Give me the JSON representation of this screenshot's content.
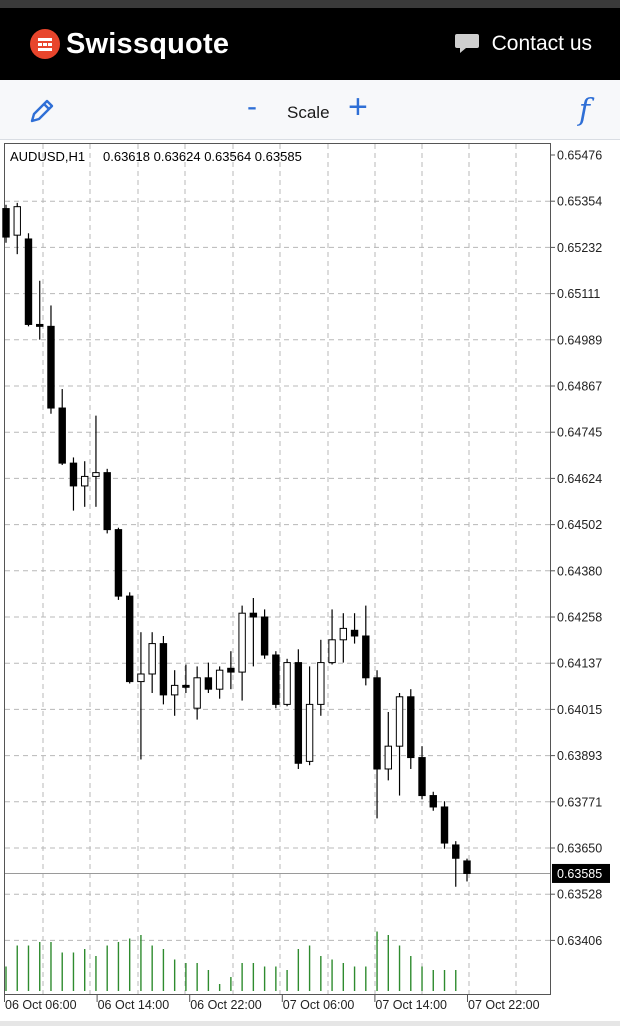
{
  "header": {
    "brand": "Swissquote",
    "contact_label": "Contact us"
  },
  "toolbar": {
    "scale_minus": "-",
    "scale_label": "Scale",
    "scale_plus": "+",
    "func_symbol": "f"
  },
  "chart_data": {
    "type": "candlestick",
    "symbol_label": "AUDUSD,H1",
    "ohlc_label": "0.63618 0.63624 0.63564 0.63585",
    "current_price_label": "0.63585",
    "current_price": 0.63585,
    "ylim": [
      0.63365,
      0.65476
    ],
    "y_ticks": [
      "0.65476",
      "0.65354",
      "0.65232",
      "0.65111",
      "0.64989",
      "0.64867",
      "0.64745",
      "0.64624",
      "0.64502",
      "0.64380",
      "0.64258",
      "0.64137",
      "0.64015",
      "0.63893",
      "0.63771",
      "0.63650",
      "0.63528",
      "0.63406"
    ],
    "x_ticks": [
      "06 Oct 06:00",
      "06 Oct 14:00",
      "06 Oct 22:00",
      "07 Oct 06:00",
      "07 Oct 14:00",
      "07 Oct 22:00"
    ],
    "colors": {
      "up": "#ffffff",
      "down": "#000000",
      "volume": "#2e8b2e",
      "grid": "#b8b8b8"
    },
    "candles": [
      [
        0.65335,
        0.65345,
        0.65245,
        0.6526
      ],
      [
        0.65265,
        0.6535,
        0.65215,
        0.6534
      ],
      [
        0.65255,
        0.6527,
        0.65025,
        0.6503
      ],
      [
        0.6503,
        0.65145,
        0.6499,
        0.65025
      ],
      [
        0.65025,
        0.6508,
        0.64795,
        0.6481
      ],
      [
        0.6481,
        0.6486,
        0.6466,
        0.64665
      ],
      [
        0.64665,
        0.6468,
        0.6454,
        0.64605
      ],
      [
        0.64605,
        0.6467,
        0.6455,
        0.6463
      ],
      [
        0.6463,
        0.6479,
        0.6455,
        0.6464
      ],
      [
        0.6464,
        0.6465,
        0.6448,
        0.6449
      ],
      [
        0.6449,
        0.64495,
        0.64305,
        0.64315
      ],
      [
        0.64315,
        0.64325,
        0.64085,
        0.6409
      ],
      [
        0.6409,
        0.6422,
        0.63885,
        0.6411
      ],
      [
        0.6411,
        0.6422,
        0.6406,
        0.6419
      ],
      [
        0.6419,
        0.6421,
        0.6403,
        0.64055
      ],
      [
        0.64055,
        0.6412,
        0.64,
        0.6408
      ],
      [
        0.6408,
        0.64135,
        0.6406,
        0.64075
      ],
      [
        0.6402,
        0.6413,
        0.6399,
        0.641
      ],
      [
        0.641,
        0.6414,
        0.6406,
        0.6407
      ],
      [
        0.6407,
        0.6413,
        0.64045,
        0.6412
      ],
      [
        0.64125,
        0.6417,
        0.6407,
        0.64115
      ],
      [
        0.64115,
        0.6429,
        0.6404,
        0.6427
      ],
      [
        0.6427,
        0.6431,
        0.6413,
        0.6426
      ],
      [
        0.6426,
        0.6428,
        0.6415,
        0.6416
      ],
      [
        0.6416,
        0.6417,
        0.6402,
        0.6403
      ],
      [
        0.6403,
        0.6415,
        0.64025,
        0.6414
      ],
      [
        0.6414,
        0.64175,
        0.6386,
        0.63875
      ],
      [
        0.6388,
        0.6413,
        0.6387,
        0.6403
      ],
      [
        0.6403,
        0.642,
        0.64,
        0.6414
      ],
      [
        0.6414,
        0.6428,
        0.64135,
        0.642
      ],
      [
        0.642,
        0.6427,
        0.6414,
        0.6423
      ],
      [
        0.64225,
        0.6427,
        0.6419,
        0.6421
      ],
      [
        0.6421,
        0.6429,
        0.6408,
        0.641
      ],
      [
        0.641,
        0.6412,
        0.6373,
        0.6386
      ],
      [
        0.6386,
        0.6401,
        0.6383,
        0.6392
      ],
      [
        0.6392,
        0.6406,
        0.6379,
        0.6405
      ],
      [
        0.6405,
        0.6407,
        0.6386,
        0.6389
      ],
      [
        0.6389,
        0.6392,
        0.6378,
        0.6379
      ],
      [
        0.6379,
        0.638,
        0.6375,
        0.6376
      ],
      [
        0.6376,
        0.63775,
        0.6365,
        0.63665
      ],
      [
        0.6366,
        0.6367,
        0.6355,
        0.63625
      ],
      [
        0.63618,
        0.63624,
        0.63564,
        0.63585
      ]
    ],
    "volumes": [
      7,
      13,
      13,
      14,
      14,
      11,
      11,
      12,
      10,
      13,
      14,
      15,
      16,
      13,
      12,
      9,
      8,
      8,
      6,
      2,
      4,
      8,
      8,
      7,
      7,
      6,
      12,
      13,
      10,
      9,
      8,
      7,
      7,
      17,
      16,
      13,
      10,
      7,
      6,
      6,
      6,
      0
    ]
  }
}
